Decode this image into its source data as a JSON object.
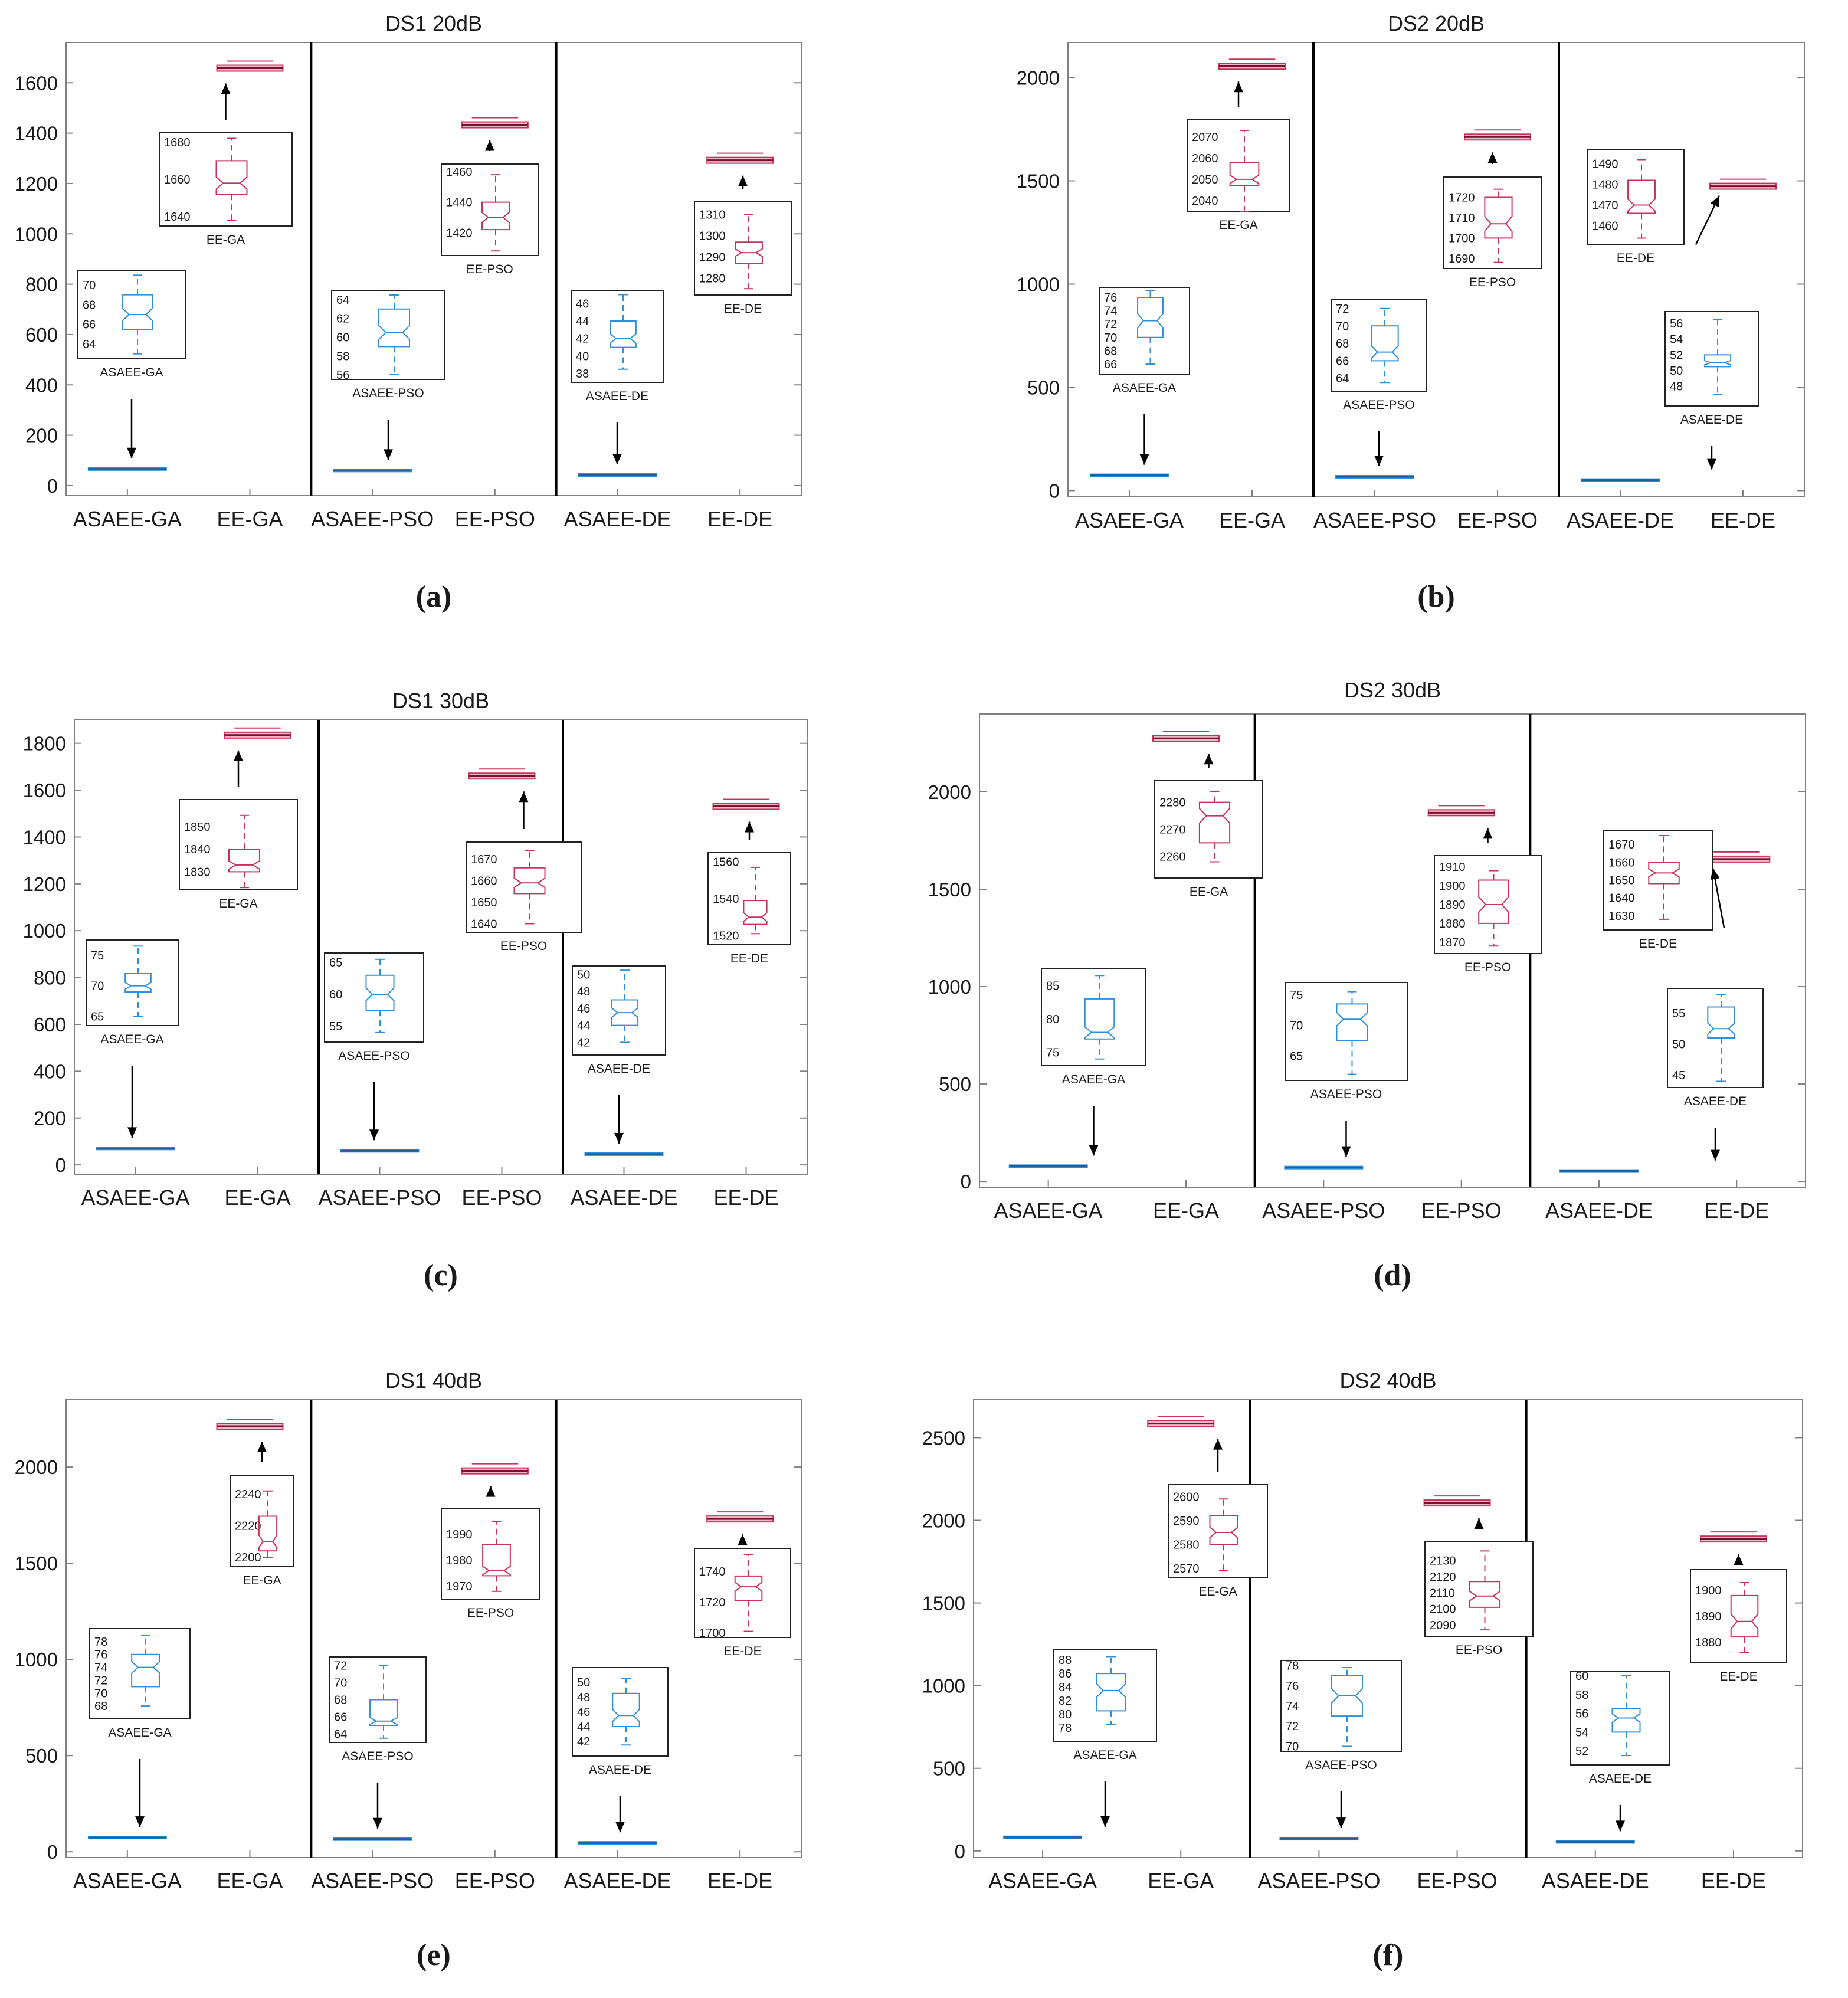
{
  "colors": {
    "asaee": "#2f8fd8",
    "ee": "#c8325a",
    "axis": "#1a1a1a",
    "tick": "#808080"
  },
  "chart_data": [
    {
      "type": "boxplot",
      "caption": "(a)",
      "title": "DS1 20dB",
      "categories": [
        "ASAEE-GA",
        "EE-GA",
        "ASAEE-PSO",
        "EE-PSO",
        "ASAEE-DE",
        "EE-DE"
      ],
      "ylim": [
        -40,
        1760
      ],
      "yticks": [
        0,
        200,
        400,
        600,
        800,
        1000,
        1200,
        1400,
        1600
      ],
      "values": [
        66,
        1658,
        60,
        1433,
        42,
        1292
      ],
      "insets": [
        {
          "label": "ASAEE-GA",
          "ylim": [
            62.5,
            71.5
          ],
          "ticks": [
            64,
            66,
            68,
            70
          ],
          "box": {
            "whislo": 63,
            "q1": 65.5,
            "med": 67,
            "q3": 69,
            "whishi": 71
          }
        },
        {
          "label": "EE-GA",
          "ylim": [
            1635,
            1685
          ],
          "ticks": [
            1640,
            1660,
            1680
          ],
          "box": {
            "whislo": 1638,
            "q1": 1652,
            "med": 1658,
            "q3": 1670,
            "whishi": 1682
          }
        },
        {
          "label": "ASAEE-PSO",
          "ylim": [
            55.5,
            65
          ],
          "ticks": [
            56,
            58,
            60,
            62,
            64
          ],
          "box": {
            "whislo": 56,
            "q1": 59,
            "med": 60.5,
            "q3": 63,
            "whishi": 64.5
          }
        },
        {
          "label": "EE-PSO",
          "ylim": [
            1405,
            1465
          ],
          "ticks": [
            1420,
            1440,
            1460
          ],
          "box": {
            "whislo": 1408,
            "q1": 1422,
            "med": 1430,
            "q3": 1440,
            "whishi": 1458
          }
        },
        {
          "label": "ASAEE-DE",
          "ylim": [
            37,
            47.5
          ],
          "ticks": [
            38,
            40,
            42,
            44,
            46
          ],
          "box": {
            "whislo": 38.5,
            "q1": 41,
            "med": 42,
            "q3": 44,
            "whishi": 47
          }
        },
        {
          "label": "EE-DE",
          "ylim": [
            1272,
            1316
          ],
          "ticks": [
            1280,
            1290,
            1300,
            1310
          ],
          "box": {
            "whislo": 1275,
            "q1": 1287,
            "med": 1292,
            "q3": 1297,
            "whishi": 1310
          }
        }
      ]
    },
    {
      "type": "boxplot",
      "caption": "(b)",
      "title": "DS2 20dB",
      "categories": [
        "ASAEE-GA",
        "EE-GA",
        "ASAEE-PSO",
        "EE-PSO",
        "ASAEE-DE",
        "EE-DE"
      ],
      "ylim": [
        -30,
        2170
      ],
      "yticks": [
        0,
        500,
        1000,
        1500,
        2000
      ],
      "values": [
        74,
        2055,
        67,
        1712,
        51,
        1474
      ],
      "insets": [
        {
          "label": "ASAEE-GA",
          "ylim": [
            64.5,
            77.5
          ],
          "ticks": [
            66,
            68,
            70,
            72,
            74,
            76
          ],
          "box": {
            "whislo": 66,
            "q1": 70,
            "med": 72.5,
            "q3": 76,
            "whishi": 77
          }
        },
        {
          "label": "EE-GA",
          "ylim": [
            2035,
            2078
          ],
          "ticks": [
            2040,
            2050,
            2060,
            2070
          ],
          "box": {
            "whislo": 2035,
            "q1": 2047,
            "med": 2050,
            "q3": 2058,
            "whishi": 2073
          }
        },
        {
          "label": "ASAEE-PSO",
          "ylim": [
            62.5,
            73
          ],
          "ticks": [
            64,
            66,
            68,
            70,
            72
          ],
          "box": {
            "whislo": 63.5,
            "q1": 66,
            "med": 67,
            "q3": 70,
            "whishi": 72
          }
        },
        {
          "label": "EE-PSO",
          "ylim": [
            1685,
            1730
          ],
          "ticks": [
            1690,
            1700,
            1710,
            1720
          ],
          "box": {
            "whislo": 1688,
            "q1": 1700,
            "med": 1707,
            "q3": 1720,
            "whishi": 1724
          }
        },
        {
          "label": "EE-DE",
          "ylim": [
            1451,
            1497
          ],
          "ticks": [
            1460,
            1470,
            1480,
            1490
          ],
          "box": {
            "whislo": 1454,
            "q1": 1466,
            "med": 1470,
            "q3": 1482,
            "whishi": 1492
          }
        },
        {
          "label": "ASAEE-DE",
          "ylim": [
            45.5,
            57.5
          ],
          "ticks": [
            48,
            50,
            52,
            54,
            56
          ],
          "box": {
            "whislo": 47,
            "q1": 50.5,
            "med": 51,
            "q3": 52,
            "whishi": 56.5
          }
        }
      ]
    },
    {
      "type": "boxplot",
      "caption": "(c)",
      "title": "DS1 30dB",
      "categories": [
        "ASAEE-GA",
        "EE-GA",
        "ASAEE-PSO",
        "EE-PSO",
        "ASAEE-DE",
        "EE-DE"
      ],
      "ylim": [
        -40,
        1900
      ],
      "yticks": [
        0,
        200,
        400,
        600,
        800,
        1000,
        1200,
        1400,
        1600,
        1800
      ],
      "values": [
        70,
        1835,
        60,
        1660,
        46,
        1531
      ],
      "insets": [
        {
          "label": "ASAEE-GA",
          "ylim": [
            63.5,
            77.5
          ],
          "ticks": [
            65,
            70,
            75
          ],
          "box": {
            "whislo": 65,
            "q1": 69,
            "med": 70,
            "q3": 72,
            "whishi": 76.5
          }
        },
        {
          "label": "EE-GA",
          "ylim": [
            1822,
            1862
          ],
          "ticks": [
            1830,
            1840,
            1850
          ],
          "box": {
            "whislo": 1823,
            "q1": 1830,
            "med": 1833,
            "q3": 1840,
            "whishi": 1855
          }
        },
        {
          "label": "ASAEE-PSO",
          "ylim": [
            52.5,
            66.5
          ],
          "ticks": [
            55,
            60,
            65
          ],
          "box": {
            "whislo": 54,
            "q1": 57.5,
            "med": 60,
            "q3": 63,
            "whishi": 65.5
          }
        },
        {
          "label": "EE-PSO",
          "ylim": [
            1636,
            1678
          ],
          "ticks": [
            1640,
            1650,
            1660,
            1670
          ],
          "box": {
            "whislo": 1640,
            "q1": 1654,
            "med": 1659,
            "q3": 1666,
            "whishi": 1674
          }
        },
        {
          "label": "ASAEE-DE",
          "ylim": [
            40.5,
            51
          ],
          "ticks": [
            42,
            44,
            46,
            48,
            50
          ],
          "box": {
            "whislo": 42,
            "q1": 44,
            "med": 45.5,
            "q3": 47,
            "whishi": 50.5
          }
        },
        {
          "label": "EE-DE",
          "ylim": [
            1515,
            1565
          ],
          "ticks": [
            1520,
            1540,
            1560
          ],
          "box": {
            "whislo": 1521,
            "q1": 1526,
            "med": 1530,
            "q3": 1539,
            "whishi": 1557
          }
        }
      ]
    },
    {
      "type": "boxplot",
      "caption": "(d)",
      "title": "DS2 30dB",
      "categories": [
        "ASAEE-GA",
        "EE-GA",
        "ASAEE-PSO",
        "EE-PSO",
        "ASAEE-DE",
        "EE-DE"
      ],
      "ylim": [
        -30,
        2400
      ],
      "yticks": [
        0,
        500,
        1000,
        1500,
        2000
      ],
      "values": [
        78,
        2275,
        71,
        1893,
        53,
        1655
      ],
      "insets": [
        {
          "label": "ASAEE-GA",
          "ylim": [
            73,
            87.5
          ],
          "ticks": [
            75,
            80,
            85
          ],
          "box": {
            "whislo": 74,
            "q1": 77,
            "med": 78,
            "q3": 83,
            "whishi": 86.5
          }
        },
        {
          "label": "EE-GA",
          "ylim": [
            2252,
            2288
          ],
          "ticks": [
            2260,
            2270,
            2280
          ],
          "box": {
            "whislo": 2258,
            "q1": 2265,
            "med": 2275,
            "q3": 2280,
            "whishi": 2284
          }
        },
        {
          "label": "ASAEE-PSO",
          "ylim": [
            61,
            77
          ],
          "ticks": [
            65,
            70,
            75
          ],
          "box": {
            "whislo": 62,
            "q1": 67.5,
            "med": 71,
            "q3": 73.5,
            "whishi": 75.5
          }
        },
        {
          "label": "EE-PSO",
          "ylim": [
            1864,
            1916
          ],
          "ticks": [
            1870,
            1880,
            1890,
            1900,
            1910
          ],
          "box": {
            "whislo": 1868,
            "q1": 1880,
            "med": 1890,
            "q3": 1903,
            "whishi": 1908
          }
        },
        {
          "label": "EE-DE",
          "ylim": [
            1622,
            1678
          ],
          "ticks": [
            1630,
            1640,
            1650,
            1660,
            1670
          ],
          "box": {
            "whislo": 1628,
            "q1": 1648,
            "med": 1654,
            "q3": 1660,
            "whishi": 1675
          }
        },
        {
          "label": "ASAEE-DE",
          "ylim": [
            43,
            59
          ],
          "ticks": [
            45,
            50,
            55
          ],
          "box": {
            "whislo": 44,
            "q1": 51,
            "med": 52.5,
            "q3": 56,
            "whishi": 58
          }
        }
      ]
    },
    {
      "type": "boxplot",
      "caption": "(e)",
      "title": "DS1 40dB",
      "categories": [
        "ASAEE-GA",
        "EE-GA",
        "ASAEE-PSO",
        "EE-PSO",
        "ASAEE-DE",
        "EE-DE"
      ],
      "ylim": [
        -30,
        2350
      ],
      "yticks": [
        0,
        500,
        1000,
        1500,
        2000
      ],
      "values": [
        74,
        2212,
        66,
        1980,
        46,
        1730
      ],
      "insets": [
        {
          "label": "ASAEE-GA",
          "ylim": [
            66,
            80
          ],
          "ticks": [
            68,
            70,
            72,
            74,
            76,
            78
          ],
          "box": {
            "whislo": 68,
            "q1": 71,
            "med": 74,
            "q3": 76,
            "whishi": 79
          }
        },
        {
          "label": "EE-GA",
          "ylim": [
            2194,
            2252
          ],
          "ticks": [
            2200,
            2220,
            2240
          ],
          "box": {
            "whislo": 2200,
            "q1": 2204,
            "med": 2210,
            "q3": 2226,
            "whishi": 2242
          }
        },
        {
          "label": "ASAEE-PSO",
          "ylim": [
            63,
            73
          ],
          "ticks": [
            64,
            66,
            68,
            70,
            72
          ],
          "box": {
            "whislo": 63.5,
            "q1": 65,
            "med": 65.5,
            "q3": 68,
            "whishi": 72
          }
        },
        {
          "label": "EE-PSO",
          "ylim": [
            1965,
            2000
          ],
          "ticks": [
            1970,
            1980,
            1990
          ],
          "box": {
            "whislo": 1968,
            "q1": 1974,
            "med": 1976,
            "q3": 1986,
            "whishi": 1995
          }
        },
        {
          "label": "ASAEE-DE",
          "ylim": [
            40,
            52
          ],
          "ticks": [
            42,
            44,
            46,
            48,
            50
          ],
          "box": {
            "whislo": 41.5,
            "q1": 44,
            "med": 45.5,
            "q3": 48.5,
            "whishi": 50.5
          }
        },
        {
          "label": "EE-DE",
          "ylim": [
            1697,
            1755
          ],
          "ticks": [
            1700,
            1720,
            1740
          ],
          "box": {
            "whislo": 1701,
            "q1": 1721,
            "med": 1730,
            "q3": 1737,
            "whishi": 1751
          }
        }
      ]
    },
    {
      "type": "boxplot",
      "caption": "(f)",
      "title": "DS2 40dB",
      "categories": [
        "ASAEE-GA",
        "EE-GA",
        "ASAEE-PSO",
        "EE-PSO",
        "ASAEE-DE",
        "EE-DE"
      ],
      "ylim": [
        -40,
        2730
      ],
      "yticks": [
        0,
        500,
        1000,
        1500,
        2000,
        2500
      ],
      "values": [
        82,
        2585,
        74,
        2105,
        55,
        1887
      ],
      "insets": [
        {
          "label": "ASAEE-GA",
          "ylim": [
            76,
            89.5
          ],
          "ticks": [
            78,
            80,
            82,
            84,
            86,
            88
          ],
          "box": {
            "whislo": 78.5,
            "q1": 80.5,
            "med": 83.5,
            "q3": 86,
            "whishi": 88.5
          }
        },
        {
          "label": "EE-GA",
          "ylim": [
            2566,
            2605
          ],
          "ticks": [
            2570,
            2580,
            2590,
            2600
          ],
          "box": {
            "whislo": 2569,
            "q1": 2580,
            "med": 2585,
            "q3": 2592,
            "whishi": 2599
          }
        },
        {
          "label": "ASAEE-PSO",
          "ylim": [
            69.5,
            78.5
          ],
          "ticks": [
            70,
            72,
            74,
            76,
            78
          ],
          "box": {
            "whislo": 70,
            "q1": 73,
            "med": 75,
            "q3": 77,
            "whishi": 77.8
          }
        },
        {
          "label": "EE-PSO",
          "ylim": [
            2083,
            2142
          ],
          "ticks": [
            2090,
            2100,
            2110,
            2120,
            2130
          ],
          "box": {
            "whislo": 2087,
            "q1": 2101,
            "med": 2108,
            "q3": 2117,
            "whishi": 2136
          }
        },
        {
          "label": "ASAEE-DE",
          "ylim": [
            50.5,
            60.5
          ],
          "ticks": [
            52,
            54,
            56,
            58,
            60
          ],
          "box": {
            "whislo": 51.5,
            "q1": 54,
            "med": 55.5,
            "q3": 56.5,
            "whishi": 60
          }
        },
        {
          "label": "EE-DE",
          "ylim": [
            1872,
            1908
          ],
          "ticks": [
            1880,
            1890,
            1900
          ],
          "box": {
            "whislo": 1876,
            "q1": 1882,
            "med": 1888,
            "q3": 1898,
            "whishi": 1903
          }
        }
      ]
    }
  ]
}
